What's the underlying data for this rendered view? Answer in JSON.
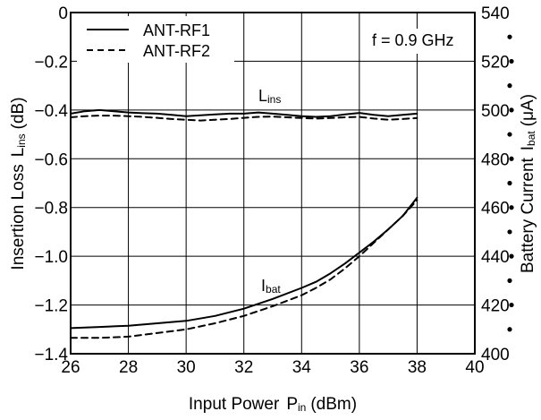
{
  "chart_data": {
    "type": "line",
    "title": "",
    "annotation": "f = 0.9 GHz",
    "curve_labels": {
      "lins": "Lins",
      "ibat": "Ibat"
    },
    "x_axis": {
      "label_main": "Input Power",
      "label_symbol": "P",
      "label_sub": "in",
      "label_unit": "(dBm)",
      "range": [
        26,
        40
      ],
      "ticks": [
        26,
        28,
        30,
        32,
        34,
        36,
        38,
        40
      ],
      "tick_labels": [
        "26",
        "28",
        "30",
        "32",
        "34",
        "36",
        "38",
        "40"
      ]
    },
    "y_left": {
      "label_main": "Insertion Loss",
      "label_symbol": "L",
      "label_sub": "ins",
      "label_unit": "(dB)",
      "range": [
        -1.4,
        0
      ],
      "ticks": [
        0,
        -0.2,
        -0.4,
        -0.6,
        -0.8,
        -1.0,
        -1.2,
        -1.4
      ],
      "tick_labels": [
        "0",
        "−0.2",
        "−0.4",
        "−0.6",
        "−0.8",
        "−1.0",
        "−1.2",
        "−1.4"
      ]
    },
    "y_right": {
      "label_main": "Battery Current",
      "label_symbol": "I",
      "label_sub": "bat",
      "label_unit": "(μA)",
      "range": [
        400,
        540
      ],
      "ticks": [
        540,
        520,
        500,
        480,
        460,
        440,
        420,
        400
      ],
      "tick_labels": [
        "540",
        "520",
        "500",
        "480",
        "460",
        "440",
        "420",
        "400"
      ]
    },
    "grid": true,
    "legend": {
      "position": "top-left",
      "entries": [
        "ANT-RF1",
        "ANT-RF2"
      ]
    },
    "series": [
      {
        "name": "ANT-RF1",
        "quantity": "Lins",
        "axis": "left",
        "style": "solid",
        "x": [
          26,
          26.5,
          27,
          27.5,
          28,
          28.5,
          29,
          29.5,
          30,
          30.5,
          31,
          31.5,
          32,
          32.5,
          33,
          33.5,
          34,
          34.5,
          35,
          35.5,
          36,
          36.5,
          37,
          37.5,
          38
        ],
        "y": [
          -0.415,
          -0.405,
          -0.4,
          -0.405,
          -0.41,
          -0.413,
          -0.415,
          -0.42,
          -0.425,
          -0.422,
          -0.418,
          -0.415,
          -0.415,
          -0.41,
          -0.415,
          -0.42,
          -0.425,
          -0.428,
          -0.425,
          -0.418,
          -0.412,
          -0.42,
          -0.425,
          -0.42,
          -0.415
        ]
      },
      {
        "name": "ANT-RF2",
        "quantity": "Lins",
        "axis": "left",
        "style": "dashed",
        "x": [
          26,
          26.5,
          27,
          27.5,
          28,
          28.5,
          29,
          29.5,
          30,
          30.5,
          31,
          31.5,
          32,
          32.5,
          33,
          33.5,
          34,
          34.5,
          35,
          35.5,
          36,
          36.5,
          37,
          37.5,
          38
        ],
        "y": [
          -0.43,
          -0.425,
          -0.423,
          -0.423,
          -0.425,
          -0.428,
          -0.432,
          -0.437,
          -0.44,
          -0.443,
          -0.44,
          -0.437,
          -0.432,
          -0.428,
          -0.427,
          -0.43,
          -0.433,
          -0.435,
          -0.433,
          -0.43,
          -0.428,
          -0.435,
          -0.44,
          -0.437,
          -0.433
        ]
      },
      {
        "name": "ANT-RF1",
        "quantity": "Ibat",
        "axis": "right",
        "style": "solid",
        "x": [
          26,
          27,
          28,
          29,
          30,
          31,
          32,
          33,
          34,
          34.5,
          35,
          35.5,
          36,
          36.5,
          37,
          37.5,
          38
        ],
        "y": [
          410.5,
          411,
          411.5,
          412.5,
          413.5,
          415.5,
          418.5,
          422.5,
          427,
          429.5,
          433,
          437,
          441.5,
          446,
          451,
          456.5,
          464
        ]
      },
      {
        "name": "ANT-RF2",
        "quantity": "Ibat",
        "axis": "right",
        "style": "dashed",
        "x": [
          26,
          27,
          28,
          29,
          30,
          31,
          32,
          33,
          34,
          34.5,
          35,
          35.5,
          36,
          36.5,
          37,
          37.5,
          38
        ],
        "y": [
          406.5,
          406.5,
          407,
          408.5,
          410,
          412.5,
          415.5,
          419.5,
          424,
          427,
          430.5,
          435,
          440,
          445.5,
          451,
          456.5,
          463
        ]
      }
    ]
  }
}
